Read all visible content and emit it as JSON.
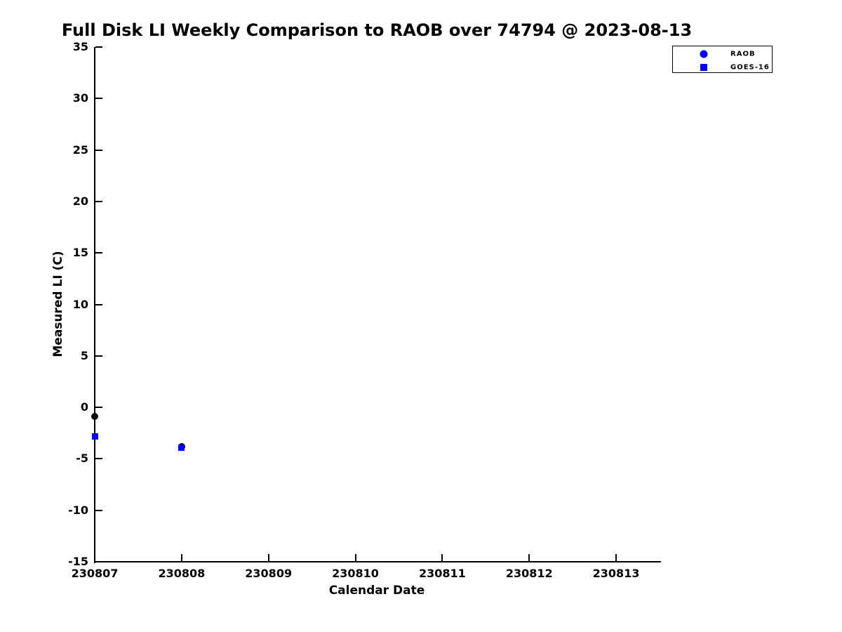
{
  "chart_data": {
    "type": "scatter",
    "title": "Full Disk LI Weekly Comparison to RAOB over 74794 @ 2023-08-13",
    "xlabel": "Calendar Date",
    "ylabel": "Measured LI (C)",
    "xlim": [
      230807,
      230813.5
    ],
    "ylim": [
      -15,
      35
    ],
    "xticks": [
      230807,
      230808,
      230809,
      230810,
      230811,
      230812,
      230813
    ],
    "yticks": [
      35,
      30,
      25,
      20,
      15,
      10,
      5,
      0,
      -5,
      -10,
      -15
    ],
    "grid": false,
    "legend": {
      "position": "upper-right",
      "entries": [
        "RAOB",
        "GOES-16"
      ]
    },
    "series": [
      {
        "name": "RAOB",
        "marker": "circle",
        "plot_color": "#000000",
        "legend_color": "#0000ff",
        "x": [
          230807,
          230808
        ],
        "y": [
          -0.9,
          -3.8
        ]
      },
      {
        "name": "GOES-16",
        "marker": "square",
        "plot_color": "#0000ff",
        "legend_color": "#0000ff",
        "x": [
          230807,
          230808
        ],
        "y": [
          -2.8,
          -3.9
        ]
      }
    ],
    "colors": {
      "axis": "#000000",
      "text": "#000000",
      "background": "#ffffff"
    }
  }
}
